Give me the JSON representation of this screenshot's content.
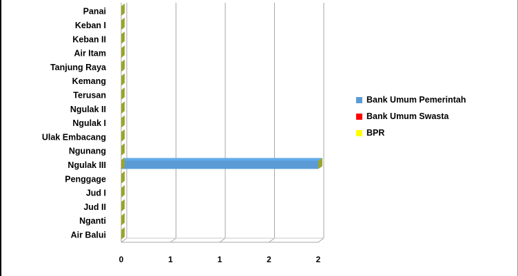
{
  "chart_data": {
    "type": "bar",
    "orientation": "horizontal",
    "three_d": true,
    "categories": [
      "Panai",
      "Keban I",
      "Keban II",
      "Air Itam",
      "Tanjung Raya",
      "Kemang",
      "Terusan",
      "Ngulak II",
      "Ngulak I",
      "Ulak Embacang",
      "Ngunang",
      "Ngulak III",
      "Penggage",
      "Jud I",
      "Jud II",
      "Nganti",
      "Air Balui"
    ],
    "series": [
      {
        "name": "Bank Umum Pemerintah",
        "color": "#5b9bd5",
        "values": [
          0,
          0,
          0,
          0,
          0,
          0,
          0,
          0,
          0,
          0,
          0,
          2,
          0,
          0,
          0,
          0,
          0
        ]
      },
      {
        "name": "Bank Umum Swasta",
        "color": "#ff0000",
        "values": [
          0,
          0,
          0,
          0,
          0,
          0,
          0,
          0,
          0,
          0,
          0,
          0,
          0,
          0,
          0,
          0,
          0
        ]
      },
      {
        "name": "BPR",
        "color": "#ffff00",
        "values": [
          0,
          0,
          0,
          0,
          0,
          0,
          0,
          0,
          0,
          0,
          0,
          0,
          0,
          0,
          0,
          0,
          0
        ]
      }
    ],
    "xlim": [
      0,
      2
    ],
    "x_ticks": [
      0,
      0.5,
      1,
      1.5,
      2
    ],
    "x_tick_labels": [
      "0",
      "1",
      "1",
      "2",
      "2"
    ],
    "grid": "vertical",
    "legend_position": "right",
    "title": "",
    "xlabel": "",
    "ylabel": ""
  }
}
